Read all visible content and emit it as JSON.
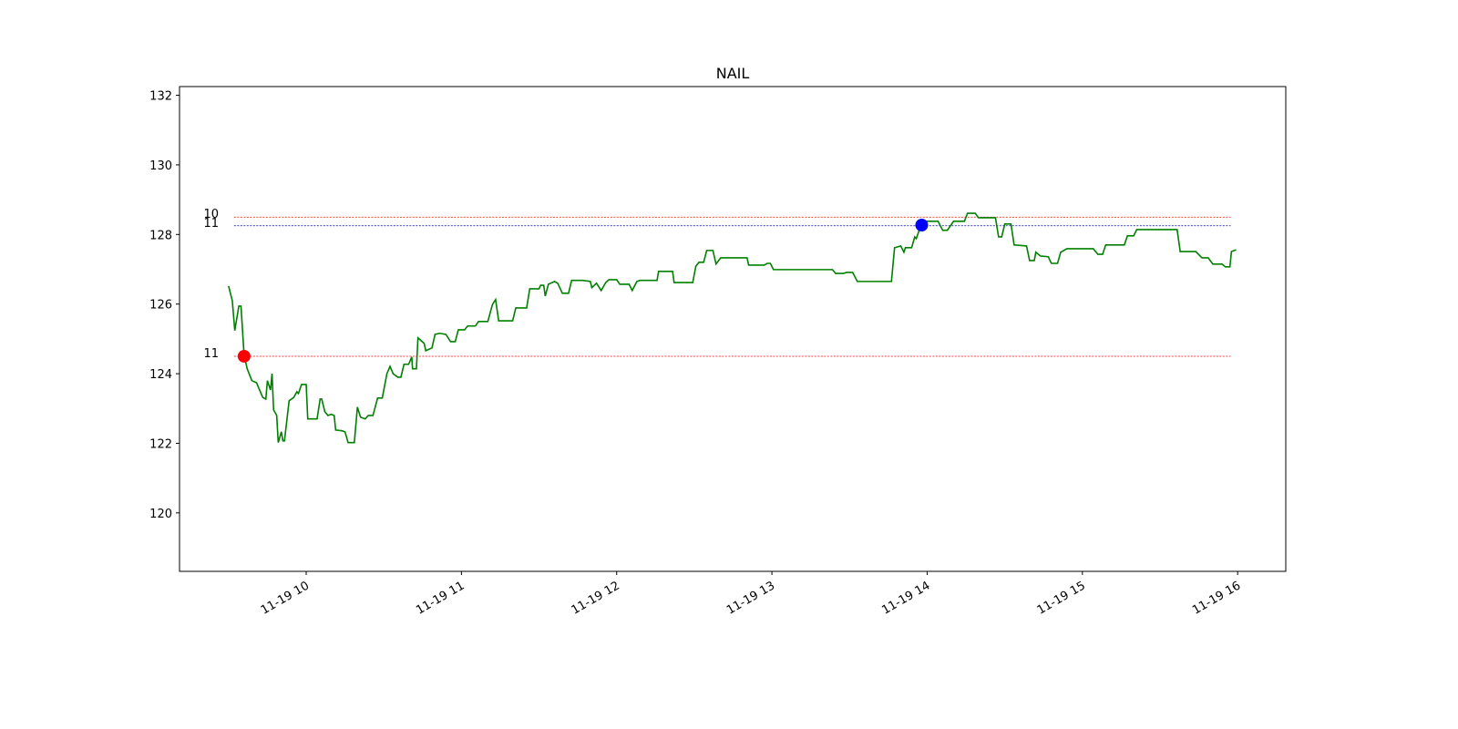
{
  "chart_data": {
    "type": "line",
    "title": "NAIL",
    "xlim": [
      9.184,
      16.31
    ],
    "ylim": [
      118.32,
      132.25
    ],
    "xticks": [
      {
        "value": 10,
        "label": "11-19 10"
      },
      {
        "value": 11,
        "label": "11-19 11"
      },
      {
        "value": 12,
        "label": "11-19 12"
      },
      {
        "value": 13,
        "label": "11-19 13"
      },
      {
        "value": 14,
        "label": "11-19 14"
      },
      {
        "value": 15,
        "label": "11-19 15"
      },
      {
        "value": 16,
        "label": "11-19 16"
      }
    ],
    "yticks": [
      120,
      122,
      124,
      126,
      128,
      130,
      132
    ],
    "grid": false,
    "series": [
      {
        "color": "#008000",
        "x": [
          9.5,
          9.524,
          9.54,
          9.566,
          9.58,
          9.6,
          9.62,
          9.65,
          9.68,
          9.7,
          9.72,
          9.74,
          9.75,
          9.77,
          9.78,
          9.79,
          9.81,
          9.82,
          9.84,
          9.85,
          9.86,
          9.89,
          9.92,
          9.94,
          9.95,
          9.97,
          10.0,
          10.01,
          10.07,
          10.09,
          10.1,
          10.12,
          10.14,
          10.16,
          10.18,
          10.19,
          10.23,
          10.25,
          10.27,
          10.31,
          10.33,
          10.35,
          10.38,
          10.4,
          10.43,
          10.46,
          10.49,
          10.52,
          10.54,
          10.56,
          10.59,
          10.61,
          10.63,
          10.66,
          10.68,
          10.685,
          10.71,
          10.72,
          10.76,
          10.77,
          10.81,
          10.83,
          10.86,
          10.9,
          10.93,
          10.96,
          10.98,
          11.02,
          11.04,
          11.09,
          11.11,
          11.17,
          11.2,
          11.22,
          11.24,
          11.33,
          11.35,
          11.42,
          11.44,
          11.5,
          11.51,
          11.53,
          11.54,
          11.56,
          11.6,
          11.62,
          11.65,
          11.69,
          11.71,
          11.78,
          11.83,
          11.84,
          11.87,
          11.9,
          11.93,
          11.95,
          12.0,
          12.02,
          12.08,
          12.1,
          12.13,
          12.15,
          12.26,
          12.27,
          12.36,
          12.37,
          12.49,
          12.51,
          12.53,
          12.56,
          12.58,
          12.62,
          12.64,
          12.67,
          12.84,
          12.85,
          12.95,
          12.97,
          12.99,
          13.01,
          13.39,
          13.41,
          13.46,
          13.48,
          13.52,
          13.55,
          13.77,
          13.79,
          13.83,
          13.85,
          13.86,
          13.9,
          13.92,
          13.93,
          13.96,
          13.99,
          14.07,
          14.1,
          14.13,
          14.17,
          14.24,
          14.26,
          14.31,
          14.33,
          14.44,
          14.46,
          14.48,
          14.5,
          14.54,
          14.56,
          14.64,
          14.66,
          14.69,
          14.7,
          14.73,
          14.78,
          14.8,
          14.84,
          14.86,
          14.9,
          15.07,
          15.1,
          15.13,
          15.15,
          15.27,
          15.29,
          15.33,
          15.35,
          15.61,
          15.63,
          15.73,
          15.77,
          15.81,
          15.84,
          15.9,
          15.92,
          15.95,
          15.96,
          15.99
        ],
        "values": [
          126.52,
          126.1,
          125.24,
          125.94,
          125.94,
          124.53,
          124.14,
          123.8,
          123.74,
          123.53,
          123.32,
          123.27,
          123.8,
          123.53,
          124.0,
          122.96,
          122.8,
          122.02,
          122.33,
          122.07,
          122.07,
          123.22,
          123.32,
          123.48,
          123.43,
          123.69,
          123.69,
          122.7,
          122.7,
          123.27,
          123.27,
          122.91,
          122.8,
          122.83,
          122.8,
          122.38,
          122.36,
          122.33,
          122.02,
          122.02,
          123.04,
          122.75,
          122.7,
          122.8,
          122.8,
          123.3,
          123.3,
          124.0,
          124.21,
          124.0,
          123.9,
          123.9,
          124.27,
          124.27,
          124.48,
          124.14,
          124.14,
          125.03,
          124.87,
          124.66,
          124.74,
          125.13,
          125.16,
          125.13,
          124.92,
          124.92,
          125.26,
          125.26,
          125.37,
          125.37,
          125.5,
          125.5,
          125.99,
          126.13,
          125.52,
          125.52,
          125.89,
          125.89,
          126.44,
          126.44,
          126.54,
          126.54,
          126.23,
          126.57,
          126.65,
          126.6,
          126.31,
          126.31,
          126.68,
          126.68,
          126.65,
          126.47,
          126.6,
          126.39,
          126.62,
          126.7,
          126.7,
          126.57,
          126.57,
          126.39,
          126.65,
          126.68,
          126.68,
          126.94,
          126.94,
          126.62,
          126.62,
          127.09,
          127.2,
          127.2,
          127.54,
          127.54,
          127.15,
          127.33,
          127.33,
          127.12,
          127.12,
          127.17,
          127.17,
          126.99,
          126.99,
          126.88,
          126.88,
          126.91,
          126.91,
          126.65,
          126.65,
          127.62,
          127.67,
          127.49,
          127.62,
          127.62,
          127.93,
          127.88,
          128.27,
          128.38,
          128.38,
          128.12,
          128.12,
          128.38,
          128.38,
          128.61,
          128.61,
          128.48,
          128.48,
          127.93,
          127.93,
          128.3,
          128.3,
          127.7,
          127.67,
          127.25,
          127.25,
          127.49,
          127.38,
          127.36,
          127.17,
          127.17,
          127.49,
          127.59,
          127.59,
          127.43,
          127.43,
          127.7,
          127.7,
          127.96,
          127.96,
          128.14,
          128.14,
          127.51,
          127.51,
          127.33,
          127.33,
          127.15,
          127.15,
          127.07,
          127.07,
          127.51,
          127.56
        ]
      }
    ],
    "hlines": [
      {
        "value": 128.5,
        "label": "10",
        "color": "#ff0000"
      },
      {
        "value": 128.25,
        "label": "11",
        "color": "#0000aa"
      },
      {
        "value": 124.5,
        "label": "11",
        "color": "#ff0000"
      }
    ],
    "markers": [
      {
        "x": 9.6,
        "y": 124.5,
        "color": "#ff0000"
      },
      {
        "x": 13.965,
        "y": 128.27,
        "color": "#0000ff"
      }
    ]
  }
}
